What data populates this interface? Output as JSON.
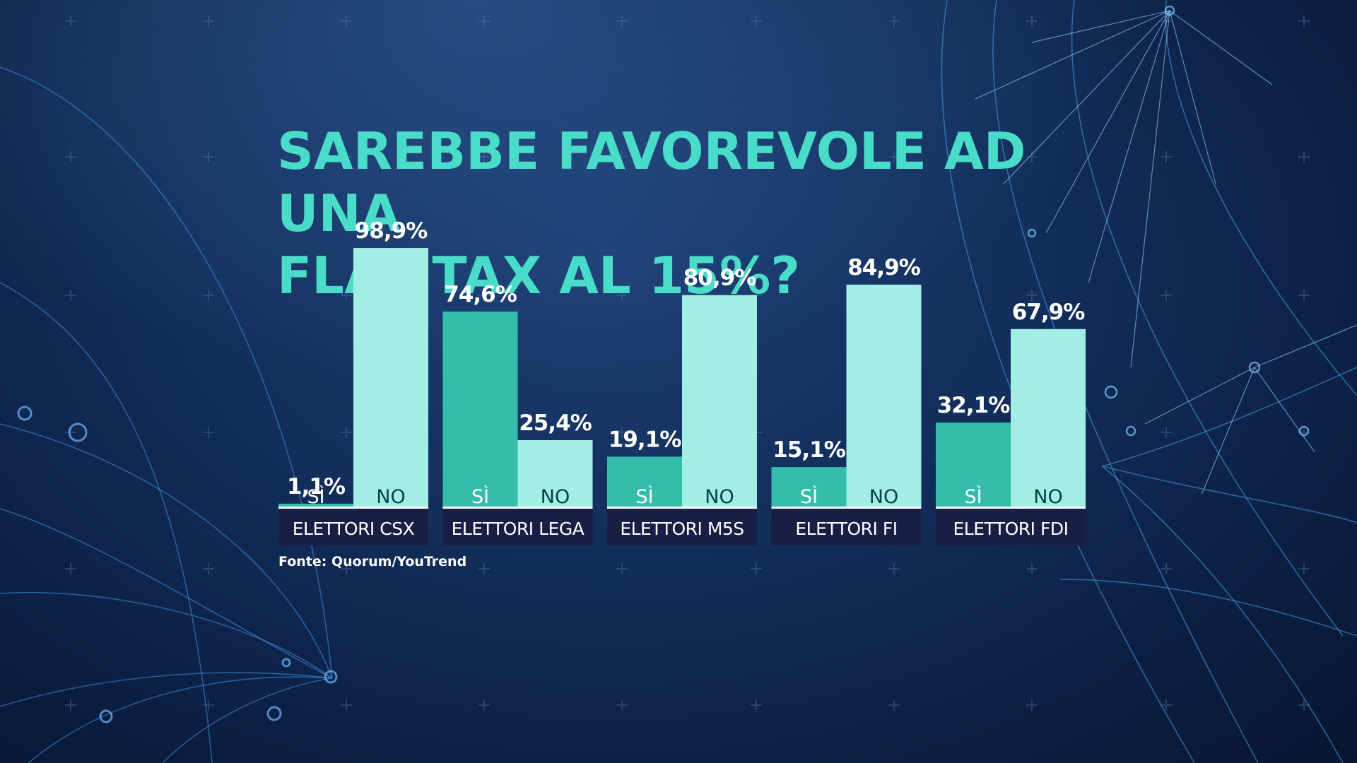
{
  "title_lines": [
    "SAREBBE FAVOREVOLE AD UNA",
    "FLAT TAX AL 15%?"
  ],
  "source": "Fonte: Quorum/YouTrend",
  "colors": {
    "background": "#0d2147",
    "title": "#49dcc8",
    "si_bar": "#33bdaa",
    "no_bar": "#a3eee4",
    "inner_label": "#0b3c4a",
    "group_label_bg": "#191f44",
    "value_text": "#ffffff"
  },
  "chart_data": {
    "type": "bar",
    "title": "SAREBBE FAVOREVOLE AD UNA FLAT TAX AL 15%?",
    "categories": [
      "ELETTORI CSX",
      "ELETTORI LEGA",
      "ELETTORI M5S",
      "ELETTORI FI",
      "ELETTORI FDI"
    ],
    "series": [
      {
        "name": "SÌ",
        "values": [
          1.1,
          74.6,
          19.1,
          15.1,
          32.1
        ],
        "labels": [
          "1,1%",
          "74,6%",
          "19,1%",
          "15,1%",
          "32,1%"
        ]
      },
      {
        "name": "NO",
        "values": [
          98.9,
          25.4,
          80.9,
          84.9,
          67.9
        ],
        "labels": [
          "98,9%",
          "25,4%",
          "80,9%",
          "84,9%",
          "67,9%"
        ]
      }
    ],
    "ylim": [
      0,
      100
    ],
    "grid": false,
    "legend": "none"
  }
}
